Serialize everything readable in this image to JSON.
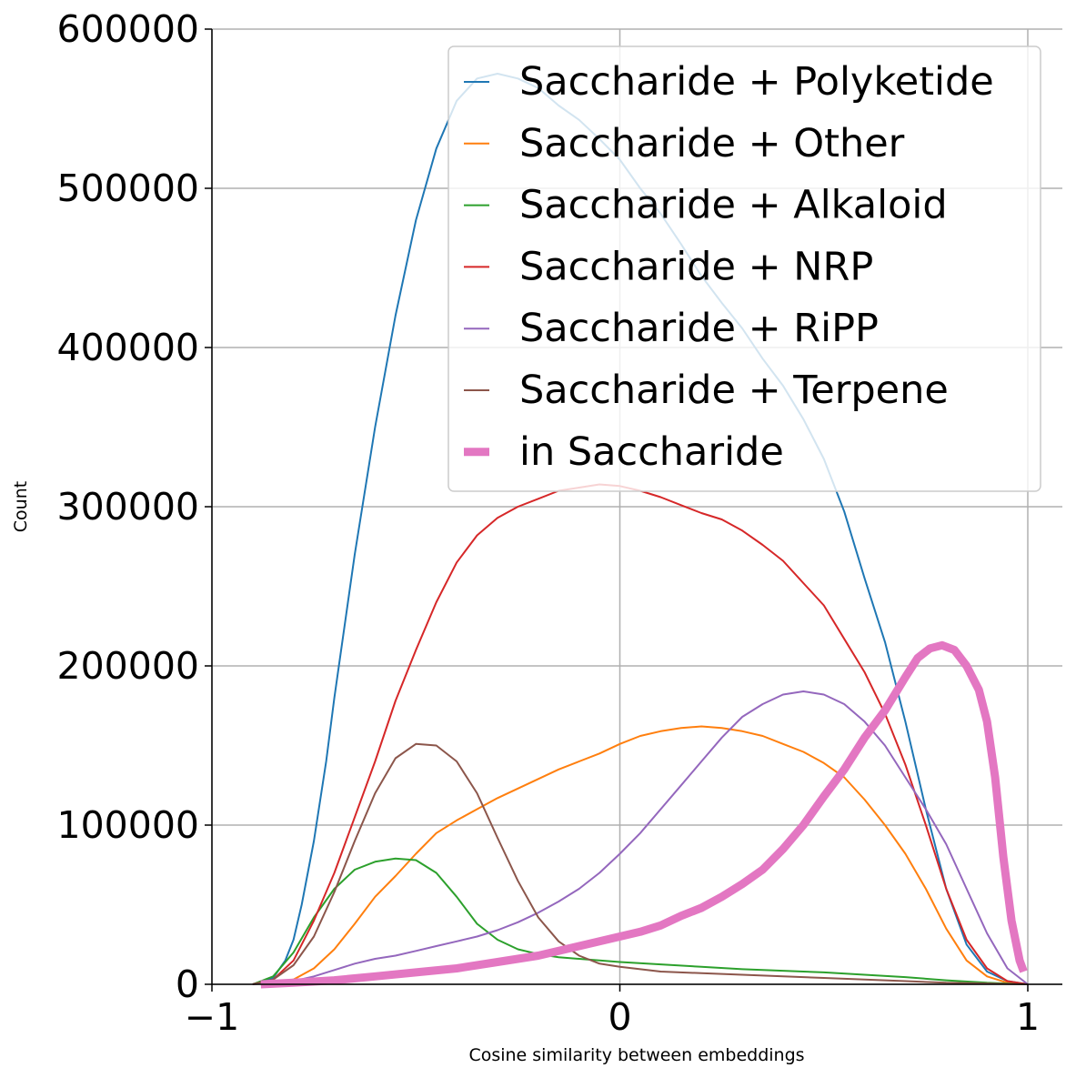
{
  "chart_data": {
    "type": "line",
    "title": "",
    "xlabel": "Cosine similarity between embeddings",
    "ylabel": "Count",
    "xlim": [
      -1,
      1
    ],
    "ylim": [
      0,
      600000
    ],
    "x_ticks": [
      -1,
      0,
      1
    ],
    "x_tick_labels": [
      "−1",
      "0",
      "1"
    ],
    "y_ticks": [
      0,
      100000,
      200000,
      300000,
      400000,
      500000,
      600000
    ],
    "y_tick_labels": [
      "0",
      "100000",
      "200000",
      "300000",
      "400000",
      "500000",
      "600000"
    ],
    "grid": true,
    "legend_position": "top-right",
    "series": [
      {
        "name": "Saccharide + Polyketide",
        "color": "#1f77b4",
        "emphasized": false,
        "points": [
          [
            -0.9,
            0
          ],
          [
            -0.85,
            4000
          ],
          [
            -0.82,
            15000
          ],
          [
            -0.8,
            28000
          ],
          [
            -0.78,
            50000
          ],
          [
            -0.75,
            90000
          ],
          [
            -0.72,
            140000
          ],
          [
            -0.7,
            180000
          ],
          [
            -0.65,
            270000
          ],
          [
            -0.6,
            350000
          ],
          [
            -0.55,
            420000
          ],
          [
            -0.5,
            480000
          ],
          [
            -0.45,
            525000
          ],
          [
            -0.4,
            555000
          ],
          [
            -0.35,
            569000
          ],
          [
            -0.3,
            572000
          ],
          [
            -0.25,
            569000
          ],
          [
            -0.2,
            563000
          ],
          [
            -0.15,
            552000
          ],
          [
            -0.1,
            543000
          ],
          [
            -0.05,
            531000
          ],
          [
            0,
            518000
          ],
          [
            0.05,
            500000
          ],
          [
            0.1,
            484000
          ],
          [
            0.15,
            465000
          ],
          [
            0.2,
            445000
          ],
          [
            0.25,
            428000
          ],
          [
            0.3,
            412000
          ],
          [
            0.35,
            393000
          ],
          [
            0.4,
            376000
          ],
          [
            0.45,
            355000
          ],
          [
            0.5,
            330000
          ],
          [
            0.55,
            297000
          ],
          [
            0.6,
            255000
          ],
          [
            0.65,
            215000
          ],
          [
            0.7,
            165000
          ],
          [
            0.75,
            110000
          ],
          [
            0.8,
            60000
          ],
          [
            0.85,
            25000
          ],
          [
            0.9,
            8000
          ],
          [
            0.95,
            2000
          ],
          [
            1.0,
            0
          ]
        ]
      },
      {
        "name": "Saccharide + Other",
        "color": "#ff7f0e",
        "emphasized": false,
        "points": [
          [
            -0.9,
            0
          ],
          [
            -0.8,
            3000
          ],
          [
            -0.75,
            10000
          ],
          [
            -0.7,
            22000
          ],
          [
            -0.65,
            38000
          ],
          [
            -0.6,
            55000
          ],
          [
            -0.55,
            68000
          ],
          [
            -0.5,
            82000
          ],
          [
            -0.45,
            95000
          ],
          [
            -0.4,
            103000
          ],
          [
            -0.35,
            110000
          ],
          [
            -0.3,
            117000
          ],
          [
            -0.25,
            123000
          ],
          [
            -0.2,
            129000
          ],
          [
            -0.15,
            135000
          ],
          [
            -0.1,
            140000
          ],
          [
            -0.05,
            145000
          ],
          [
            0,
            151000
          ],
          [
            0.05,
            156000
          ],
          [
            0.1,
            159000
          ],
          [
            0.15,
            161000
          ],
          [
            0.2,
            162000
          ],
          [
            0.25,
            161000
          ],
          [
            0.3,
            159000
          ],
          [
            0.35,
            156000
          ],
          [
            0.4,
            151000
          ],
          [
            0.45,
            146000
          ],
          [
            0.5,
            139000
          ],
          [
            0.55,
            130000
          ],
          [
            0.6,
            116000
          ],
          [
            0.65,
            100000
          ],
          [
            0.7,
            82000
          ],
          [
            0.75,
            60000
          ],
          [
            0.8,
            35000
          ],
          [
            0.85,
            15000
          ],
          [
            0.9,
            5000
          ],
          [
            0.95,
            1000
          ],
          [
            1.0,
            0
          ]
        ]
      },
      {
        "name": "Saccharide + Alkaloid",
        "color": "#2ca02c",
        "emphasized": false,
        "points": [
          [
            -0.9,
            0
          ],
          [
            -0.85,
            5000
          ],
          [
            -0.8,
            20000
          ],
          [
            -0.75,
            42000
          ],
          [
            -0.7,
            60000
          ],
          [
            -0.65,
            72000
          ],
          [
            -0.6,
            77000
          ],
          [
            -0.55,
            79000
          ],
          [
            -0.5,
            78000
          ],
          [
            -0.45,
            70000
          ],
          [
            -0.4,
            55000
          ],
          [
            -0.35,
            38000
          ],
          [
            -0.3,
            28000
          ],
          [
            -0.25,
            22000
          ],
          [
            -0.2,
            19000
          ],
          [
            -0.15,
            17000
          ],
          [
            -0.1,
            16000
          ],
          [
            -0.05,
            15000
          ],
          [
            0,
            14000
          ],
          [
            0.1,
            12500
          ],
          [
            0.2,
            11000
          ],
          [
            0.3,
            9500
          ],
          [
            0.4,
            8500
          ],
          [
            0.5,
            7500
          ],
          [
            0.6,
            6000
          ],
          [
            0.7,
            4500
          ],
          [
            0.8,
            2500
          ],
          [
            0.9,
            1000
          ],
          [
            1.0,
            0
          ]
        ]
      },
      {
        "name": "Saccharide + NRP",
        "color": "#d62728",
        "emphasized": false,
        "points": [
          [
            -0.9,
            0
          ],
          [
            -0.85,
            3000
          ],
          [
            -0.8,
            15000
          ],
          [
            -0.75,
            40000
          ],
          [
            -0.7,
            70000
          ],
          [
            -0.65,
            105000
          ],
          [
            -0.6,
            140000
          ],
          [
            -0.55,
            178000
          ],
          [
            -0.5,
            210000
          ],
          [
            -0.45,
            240000
          ],
          [
            -0.4,
            265000
          ],
          [
            -0.35,
            282000
          ],
          [
            -0.3,
            293000
          ],
          [
            -0.25,
            300000
          ],
          [
            -0.2,
            305000
          ],
          [
            -0.15,
            310000
          ],
          [
            -0.1,
            312000
          ],
          [
            -0.05,
            314000
          ],
          [
            0,
            313000
          ],
          [
            0.05,
            310000
          ],
          [
            0.1,
            306000
          ],
          [
            0.15,
            301000
          ],
          [
            0.2,
            296000
          ],
          [
            0.25,
            292000
          ],
          [
            0.3,
            285000
          ],
          [
            0.35,
            276000
          ],
          [
            0.4,
            266000
          ],
          [
            0.45,
            252000
          ],
          [
            0.5,
            238000
          ],
          [
            0.55,
            217000
          ],
          [
            0.6,
            196000
          ],
          [
            0.65,
            170000
          ],
          [
            0.7,
            138000
          ],
          [
            0.75,
            100000
          ],
          [
            0.8,
            60000
          ],
          [
            0.85,
            28000
          ],
          [
            0.9,
            10000
          ],
          [
            0.95,
            2000
          ],
          [
            1.0,
            0
          ]
        ]
      },
      {
        "name": "Saccharide + RiPP",
        "color": "#9467bd",
        "emphasized": false,
        "points": [
          [
            -0.9,
            0
          ],
          [
            -0.8,
            2000
          ],
          [
            -0.75,
            5000
          ],
          [
            -0.7,
            9000
          ],
          [
            -0.65,
            13000
          ],
          [
            -0.6,
            16000
          ],
          [
            -0.55,
            18000
          ],
          [
            -0.5,
            21000
          ],
          [
            -0.45,
            24000
          ],
          [
            -0.4,
            27000
          ],
          [
            -0.35,
            30000
          ],
          [
            -0.3,
            34000
          ],
          [
            -0.25,
            39000
          ],
          [
            -0.2,
            45000
          ],
          [
            -0.15,
            52000
          ],
          [
            -0.1,
            60000
          ],
          [
            -0.05,
            70000
          ],
          [
            0,
            82000
          ],
          [
            0.05,
            95000
          ],
          [
            0.1,
            110000
          ],
          [
            0.15,
            125000
          ],
          [
            0.2,
            140000
          ],
          [
            0.25,
            155000
          ],
          [
            0.3,
            168000
          ],
          [
            0.35,
            176000
          ],
          [
            0.4,
            182000
          ],
          [
            0.45,
            184000
          ],
          [
            0.5,
            182000
          ],
          [
            0.55,
            176000
          ],
          [
            0.6,
            165000
          ],
          [
            0.65,
            150000
          ],
          [
            0.7,
            130000
          ],
          [
            0.75,
            110000
          ],
          [
            0.8,
            88000
          ],
          [
            0.85,
            60000
          ],
          [
            0.9,
            32000
          ],
          [
            0.95,
            10000
          ],
          [
            1.0,
            0
          ]
        ]
      },
      {
        "name": "Saccharide + Terpene",
        "color": "#8c564b",
        "emphasized": false,
        "points": [
          [
            -0.9,
            0
          ],
          [
            -0.85,
            3000
          ],
          [
            -0.8,
            12000
          ],
          [
            -0.75,
            30000
          ],
          [
            -0.7,
            58000
          ],
          [
            -0.65,
            90000
          ],
          [
            -0.6,
            120000
          ],
          [
            -0.55,
            142000
          ],
          [
            -0.5,
            151000
          ],
          [
            -0.45,
            150000
          ],
          [
            -0.4,
            140000
          ],
          [
            -0.35,
            120000
          ],
          [
            -0.3,
            92000
          ],
          [
            -0.25,
            65000
          ],
          [
            -0.2,
            42000
          ],
          [
            -0.15,
            27000
          ],
          [
            -0.1,
            18000
          ],
          [
            -0.05,
            13000
          ],
          [
            0,
            11000
          ],
          [
            0.1,
            8000
          ],
          [
            0.2,
            7000
          ],
          [
            0.3,
            6000
          ],
          [
            0.4,
            5000
          ],
          [
            0.5,
            4000
          ],
          [
            0.6,
            3000
          ],
          [
            0.7,
            2000
          ],
          [
            0.8,
            1000
          ],
          [
            0.9,
            500
          ],
          [
            1.0,
            0
          ]
        ]
      },
      {
        "name": "in Saccharide",
        "color": "#e377c2",
        "emphasized": true,
        "points": [
          [
            -0.88,
            0
          ],
          [
            -0.8,
            1000
          ],
          [
            -0.7,
            2500
          ],
          [
            -0.6,
            5000
          ],
          [
            -0.5,
            7500
          ],
          [
            -0.4,
            10000
          ],
          [
            -0.3,
            14000
          ],
          [
            -0.2,
            18000
          ],
          [
            -0.1,
            24000
          ],
          [
            0,
            30000
          ],
          [
            0.05,
            33000
          ],
          [
            0.1,
            37000
          ],
          [
            0.15,
            43000
          ],
          [
            0.2,
            48000
          ],
          [
            0.25,
            55000
          ],
          [
            0.3,
            63000
          ],
          [
            0.35,
            72000
          ],
          [
            0.4,
            85000
          ],
          [
            0.45,
            100000
          ],
          [
            0.5,
            118000
          ],
          [
            0.55,
            135000
          ],
          [
            0.6,
            155000
          ],
          [
            0.65,
            172000
          ],
          [
            0.7,
            193000
          ],
          [
            0.73,
            205000
          ],
          [
            0.76,
            211000
          ],
          [
            0.79,
            213000
          ],
          [
            0.82,
            210000
          ],
          [
            0.85,
            200000
          ],
          [
            0.88,
            185000
          ],
          [
            0.9,
            165000
          ],
          [
            0.92,
            130000
          ],
          [
            0.94,
            80000
          ],
          [
            0.96,
            40000
          ],
          [
            0.98,
            15000
          ],
          [
            0.99,
            8000
          ]
        ]
      }
    ]
  }
}
